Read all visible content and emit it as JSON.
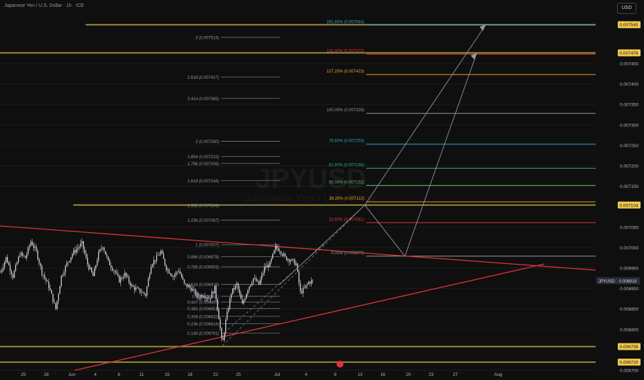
{
  "header": {
    "title": "Japanese Yen / U.S. Dollar · 1h · ICE",
    "currency_button": "USD"
  },
  "colors": {
    "background": "#0f0f0f",
    "candle": "#d1d4dc",
    "trendline": "#e0323c",
    "horizontal_level": "#b5a33a",
    "price_tag": "#f2c94c"
  },
  "chart_data": {
    "type": "candlestick",
    "symbol_watermark": "JPYUSD",
    "watermark_subtitle": "Japanese Yen / U.S. Dollar",
    "ylim": [
      0.0067,
      0.007575
    ],
    "x_axis": {
      "tick_labels": [
        "25",
        "28",
        "Jun",
        "4",
        "8",
        "11",
        "15",
        "18",
        "22",
        "25",
        "Jul",
        "4",
        "9",
        "13",
        "16",
        "20",
        "23",
        "27",
        "Aug"
      ]
    },
    "y_axis": {
      "tick_labels": [
        "0.007450",
        "0.007400",
        "0.007350",
        "0.007300",
        "0.007250",
        "0.007200",
        "0.007150",
        "0.007050",
        "0.007000",
        "0.006950",
        "0.006900",
        "0.006850",
        "0.006800",
        "0.006700"
      ],
      "tick_values": [
        0.00745,
        0.0074,
        0.00735,
        0.0073,
        0.00725,
        0.0072,
        0.00715,
        0.00705,
        0.007,
        0.00695,
        0.0069,
        0.00685,
        0.0068,
        0.0067
      ]
    },
    "price_tags": [
      {
        "label": "0.007545",
        "value": 0.007545,
        "style": "yellow"
      },
      {
        "label": "0.007476",
        "value": 0.007476,
        "style": "yellow"
      },
      {
        "label": "0.007104",
        "value": 0.007104,
        "style": "yellow"
      },
      {
        "label": "0.006758",
        "value": 0.006758,
        "style": "yellow"
      },
      {
        "label": "0.006720",
        "value": 0.00672,
        "style": "yellow"
      },
      {
        "label": "JPYUSD",
        "value": 0.006919,
        "style": "gray",
        "second_label": "0.006919"
      }
    ],
    "horizontal_levels": [
      {
        "value": 0.007545,
        "color": "#b5a33a"
      },
      {
        "value": 0.007476,
        "color": "#b5a33a"
      },
      {
        "value": 0.007104,
        "color": "#b5a33a"
      },
      {
        "value": 0.006758,
        "color": "#b5a33a"
      },
      {
        "value": 0.00672,
        "color": "#b5a33a"
      }
    ],
    "fib_extension": [
      {
        "label": "3 (0.007514)",
        "value": 0.007514
      },
      {
        "label": "2.618 (0.007417)",
        "value": 0.007417
      },
      {
        "label": "2.414 (0.007365)",
        "value": 0.007365
      },
      {
        "label": "2 (0.007260)",
        "value": 0.00726
      },
      {
        "label": "1.854 (0.007223)",
        "value": 0.007223
      },
      {
        "label": "1.786 (0.007206)",
        "value": 0.007206
      },
      {
        "label": "1.618 (0.007164)",
        "value": 0.007164
      },
      {
        "label": "1.382 (0.007104)",
        "value": 0.007104
      },
      {
        "label": "1.236 (0.007067)",
        "value": 0.007067
      },
      {
        "label": "1 (0.007007)",
        "value": 0.007007
      },
      {
        "label": "0.886 (0.006978)",
        "value": 0.006978
      },
      {
        "label": "0.786 (0.006953)",
        "value": 0.006953
      },
      {
        "label": "0.618 (0.006910)",
        "value": 0.00691
      },
      {
        "label": "0.5 (0.006881)",
        "value": 0.006881
      },
      {
        "label": "0.447 (0.006867)",
        "value": 0.006867
      },
      {
        "label": "0.382 (0.006851)",
        "value": 0.006851
      },
      {
        "label": "0.309 (0.006832)",
        "value": 0.006832
      },
      {
        "label": "0.236 (0.006814)",
        "value": 0.006814
      },
      {
        "label": "0.146 (0.006791)",
        "value": 0.006791
      }
    ],
    "fib_retracement": [
      {
        "label": "161.80% (0.007544)",
        "value": 0.007544,
        "color": "#2fa4c9"
      },
      {
        "label": "141.40% (0.007473)",
        "value": 0.007473,
        "color": "#e0323c"
      },
      {
        "label": "127.20% (0.007423)",
        "value": 0.007423,
        "color": "#f0a030"
      },
      {
        "label": "100.00% (0.007328)",
        "value": 0.007328,
        "color": "#9598a1"
      },
      {
        "label": "78.60% (0.007253)",
        "value": 0.007253,
        "color": "#2fa4c9"
      },
      {
        "label": "61.80% (0.007194)",
        "value": 0.007194,
        "color": "#26a69a"
      },
      {
        "label": "50.00% (0.007152)",
        "value": 0.007152,
        "color": "#66bb6a"
      },
      {
        "label": "38.20% (0.007112)",
        "value": 0.007112,
        "color": "#f0a030"
      },
      {
        "label": "23.60% (0.007061)",
        "value": 0.007061,
        "color": "#e0323c"
      },
      {
        "label": "0.00% (0.006979)",
        "value": 0.006979,
        "color": "#9598a1"
      }
    ]
  }
}
